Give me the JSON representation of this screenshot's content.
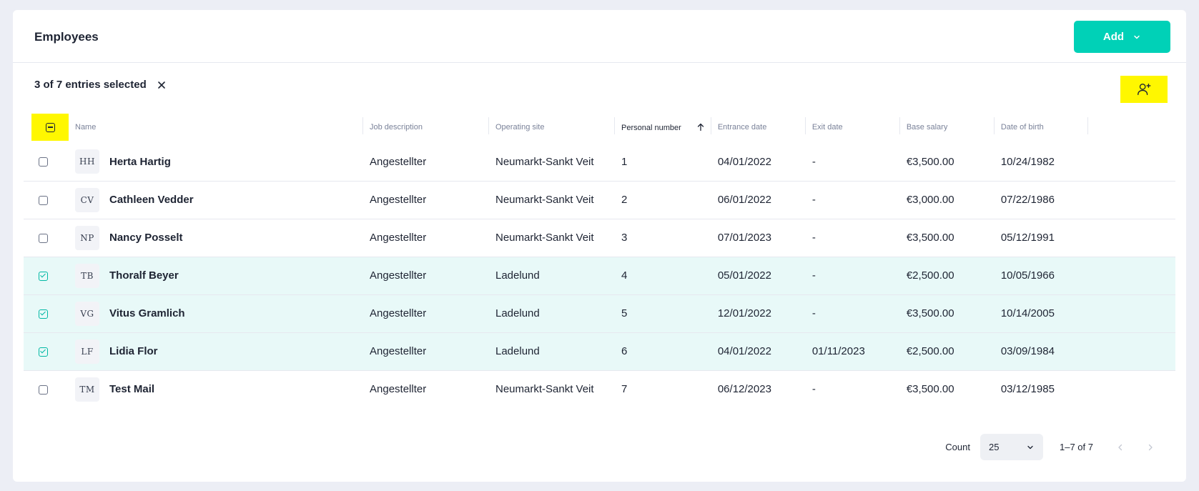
{
  "header": {
    "title": "Employees",
    "add_label": "Add"
  },
  "selection": {
    "text": "3 of 7 entries selected"
  },
  "columns": {
    "name": "Name",
    "job": "Job description",
    "site": "Operating site",
    "personal_number": "Personal number",
    "entrance": "Entrance date",
    "exit": "Exit date",
    "salary": "Base salary",
    "dob": "Date of birth"
  },
  "rows": [
    {
      "initials": "HH",
      "name": "Herta Hartig",
      "job": "Angestellter",
      "site": "Neumarkt-Sankt Veit",
      "number": "1",
      "entrance": "04/01/2022",
      "exit": "-",
      "salary": "€3,500.00",
      "dob": "10/24/1982",
      "selected": false
    },
    {
      "initials": "CV",
      "name": "Cathleen Vedder",
      "job": "Angestellter",
      "site": "Neumarkt-Sankt Veit",
      "number": "2",
      "entrance": "06/01/2022",
      "exit": "-",
      "salary": "€3,000.00",
      "dob": "07/22/1986",
      "selected": false
    },
    {
      "initials": "NP",
      "name": "Nancy Posselt",
      "job": "Angestellter",
      "site": "Neumarkt-Sankt Veit",
      "number": "3",
      "entrance": "07/01/2023",
      "exit": "-",
      "salary": "€3,500.00",
      "dob": "05/12/1991",
      "selected": false
    },
    {
      "initials": "TB",
      "name": "Thoralf Beyer",
      "job": "Angestellter",
      "site": "Ladelund",
      "number": "4",
      "entrance": "05/01/2022",
      "exit": "-",
      "salary": "€2,500.00",
      "dob": "10/05/1966",
      "selected": true
    },
    {
      "initials": "VG",
      "name": "Vitus Gramlich",
      "job": "Angestellter",
      "site": "Ladelund",
      "number": "5",
      "entrance": "12/01/2022",
      "exit": "-",
      "salary": "€3,500.00",
      "dob": "10/14/2005",
      "selected": true
    },
    {
      "initials": "LF",
      "name": "Lidia Flor",
      "job": "Angestellter",
      "site": "Ladelund",
      "number": "6",
      "entrance": "04/01/2022",
      "exit": "01/11/2023",
      "salary": "€2,500.00",
      "dob": "03/09/1984",
      "selected": true
    },
    {
      "initials": "TM",
      "name": "Test Mail",
      "job": "Angestellter",
      "site": "Neumarkt-Sankt Veit",
      "number": "7",
      "entrance": "06/12/2023",
      "exit": "-",
      "salary": "€3,500.00",
      "dob": "03/12/1985",
      "selected": false
    }
  ],
  "pagination": {
    "count_label": "Count",
    "count_value": "25",
    "range": "1–7 of 7"
  },
  "colors": {
    "accent": "#00d1b7",
    "highlight": "#fff700",
    "selected_row": "#e8f9f8"
  },
  "icons": {
    "add_chevron": "chevron-down-icon",
    "clear": "close-icon",
    "assign": "user-plus-icon",
    "sort": "arrow-up-icon",
    "prev": "chevron-left-icon",
    "next": "chevron-right-icon"
  }
}
